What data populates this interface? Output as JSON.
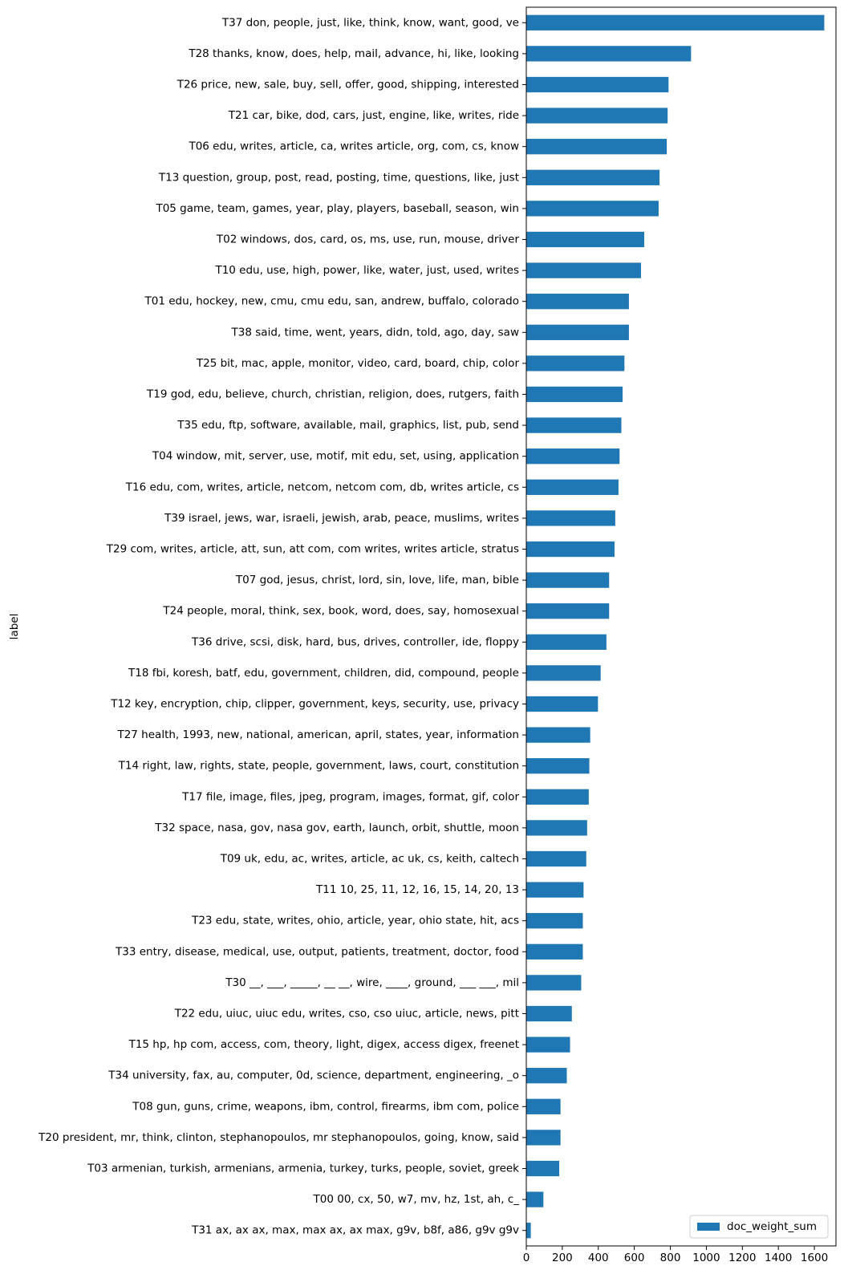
{
  "chart_data": {
    "type": "bar",
    "orientation": "horizontal",
    "ylabel": "label",
    "xlabel": "",
    "xlim": [
      0,
      1720
    ],
    "x_ticks": [
      0,
      200,
      400,
      600,
      800,
      1000,
      1200,
      1400,
      1600
    ],
    "grid": false,
    "legend_position": "bottom-right",
    "series": [
      {
        "name": "doc_weight_sum",
        "color": "#1f77b4"
      }
    ],
    "categories": [
      "T37 don, people, just, like, think, know, want, good, ve",
      "T28 thanks, know, does, help, mail, advance, hi, like, looking",
      "T26 price, new, sale, buy, sell, offer, good, shipping, interested",
      "T21 car, bike, dod, cars, just, engine, like, writes, ride",
      "T06 edu, writes, article, ca, writes article, org, com, cs, know",
      "T13 question, group, post, read, posting, time, questions, like, just",
      "T05 game, team, games, year, play, players, baseball, season, win",
      "T02 windows, dos, card, os, ms, use, run, mouse, driver",
      "T10 edu, use, high, power, like, water, just, used, writes",
      "T01 edu, hockey, new, cmu, cmu edu, san, andrew, buffalo, colorado",
      "T38 said, time, went, years, didn, told, ago, day, saw",
      "T25 bit, mac, apple, monitor, video, card, board, chip, color",
      "T19 god, edu, believe, church, christian, religion, does, rutgers, faith",
      "T35 edu, ftp, software, available, mail, graphics, list, pub, send",
      "T04 window, mit, server, use, motif, mit edu, set, using, application",
      "T16 edu, com, writes, article, netcom, netcom com, db, writes article, cs",
      "T39 israel, jews, war, israeli, jewish, arab, peace, muslims, writes",
      "T29 com, writes, article, att, sun, att com, com writes, writes article, stratus",
      "T07 god, jesus, christ, lord, sin, love, life, man, bible",
      "T24 people, moral, think, sex, book, word, does, say, homosexual",
      "T36 drive, scsi, disk, hard, bus, drives, controller, ide, floppy",
      "T18 fbi, koresh, batf, edu, government, children, did, compound, people",
      "T12 key, encryption, chip, clipper, government, keys, security, use, privacy",
      "T27 health, 1993, new, national, american, april, states, year, information",
      "T14 right, law, rights, state, people, government, laws, court, constitution",
      "T17 file, image, files, jpeg, program, images, format, gif, color",
      "T32 space, nasa, gov, nasa gov, earth, launch, orbit, shuttle, moon",
      "T09 uk, edu, ac, writes, article, ac uk, cs, keith, caltech",
      "T11 10, 25, 11, 12, 16, 15, 14, 20, 13",
      "T23 edu, state, writes, ohio, article, year, ohio state, hit, acs",
      "T33 entry, disease, medical, use, output, patients, treatment, doctor, food",
      "T30 __, ___, _____, __ __, wire, ____, ground, ___ ___, mil",
      "T22 edu, uiuc, uiuc edu, writes, cso, cso uiuc, article, news, pitt",
      "T15 hp, hp com, access, com, theory, light, digex, access digex, freenet",
      "T34 university, fax, au, computer, 0d, science, department, engineering, _o",
      "T08 gun, guns, crime, weapons, ibm, control, firearms, ibm com, police",
      "T20 president, mr, think, clinton, stephanopoulos, mr stephanopoulos, going, know, said",
      "T03 armenian, turkish, armenians, armenia, turkey, turks, people, soviet, greek",
      "T00 00, cx, 50, w7, mv, hz, 1st, ah, c_",
      "T31 ax, ax ax, max, max ax, ax max, g9v, b8f, a86, g9v g9v"
    ],
    "values": [
      1655,
      915,
      790,
      785,
      780,
      740,
      735,
      655,
      637,
      570,
      570,
      545,
      535,
      528,
      518,
      512,
      494,
      490,
      460,
      460,
      445,
      413,
      398,
      355,
      350,
      347,
      338,
      333,
      318,
      314,
      314,
      305,
      253,
      243,
      225,
      190,
      190,
      183,
      95,
      25
    ]
  }
}
